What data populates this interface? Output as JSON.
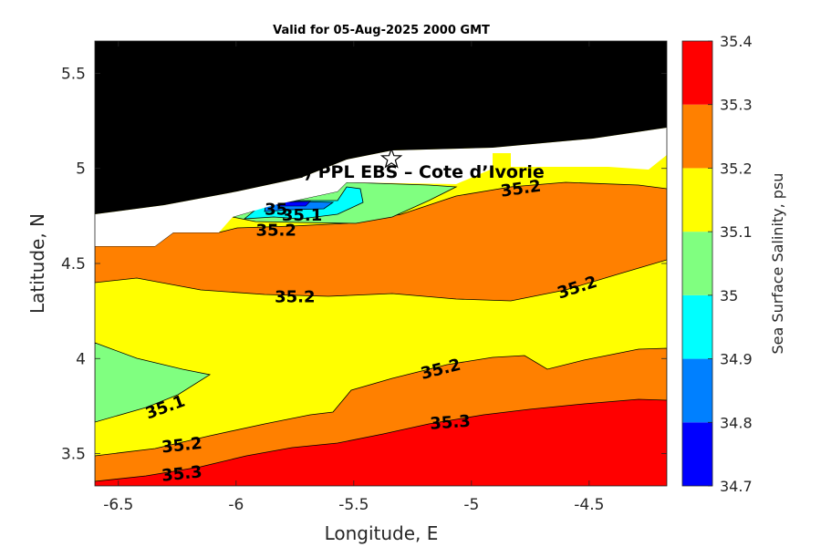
{
  "chart_data": {
    "type": "heatmap",
    "title": "Valid for 05-Aug-2025 2000 GMT",
    "xlabel": "Longitude, E",
    "ylabel": "Latitude, N",
    "xlim": [
      -6.6,
      -4.17
    ],
    "ylim": [
      3.33,
      5.67
    ],
    "xticks": [
      -6.5,
      -6,
      -5.5,
      -5,
      -4.5
    ],
    "xtick_labels": [
      "-6.5",
      "-6",
      "-5.5",
      "-5",
      "-4.5"
    ],
    "yticks": [
      3.5,
      4,
      4.5,
      5,
      5.5
    ],
    "ytick_labels": [
      "3.5",
      "4",
      "4.5",
      "5",
      "5.5"
    ],
    "grid": false,
    "site_label": "(ONHYM) PPL EBS  – Cote d’Ivorie",
    "site_marker": {
      "lon": -5.34,
      "lat": 5.05
    },
    "colorbar": {
      "label": "Sea Surface Salinity, psu",
      "levels": [
        34.7,
        34.8,
        34.9,
        35,
        35.1,
        35.2,
        35.3,
        35.4
      ],
      "tick_labels": [
        "34.7",
        "34.8",
        "34.9",
        "35",
        "35.1",
        "35.2",
        "35.3",
        "35.4"
      ],
      "colors": [
        "#0000ff",
        "#0080ff",
        "#00ffff",
        "#80ff80",
        "#ffff00",
        "#ff8000",
        "#ff0000"
      ]
    },
    "land_color": "#000000",
    "nodata_color": "#ffffff",
    "contour_labels": [
      {
        "text": "35.2",
        "lon": -4.79,
        "lat": 4.89,
        "angle": -8
      },
      {
        "text": "35.1",
        "lon": -5.72,
        "lat": 4.75,
        "angle": 0
      },
      {
        "text": "35",
        "lon": -5.83,
        "lat": 4.78,
        "angle": 0
      },
      {
        "text": "35.2",
        "lon": -5.83,
        "lat": 4.67,
        "angle": 0
      },
      {
        "text": "35.2",
        "lon": -5.75,
        "lat": 4.32,
        "angle": 0
      },
      {
        "text": "35.2",
        "lon": -4.55,
        "lat": 4.37,
        "angle": -18
      },
      {
        "text": "35.2",
        "lon": -5.13,
        "lat": 3.94,
        "angle": -14
      },
      {
        "text": "35.1",
        "lon": -6.3,
        "lat": 3.74,
        "angle": -20
      },
      {
        "text": "35.3",
        "lon": -5.09,
        "lat": 3.66,
        "angle": -4
      },
      {
        "text": "35.2",
        "lon": -6.23,
        "lat": 3.54,
        "angle": -6
      },
      {
        "text": "35.3",
        "lon": -6.23,
        "lat": 3.39,
        "angle": -6
      }
    ]
  }
}
